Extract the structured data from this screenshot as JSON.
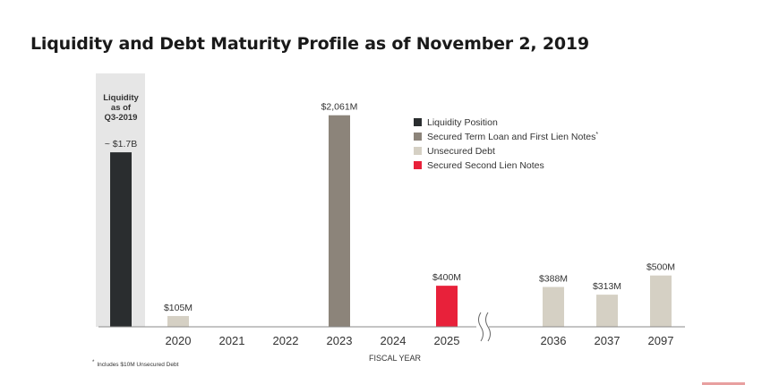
{
  "title": "Liquidity and Debt Maturity Profile as of November 2, 2019",
  "colors": {
    "liquidity": "#2a2d2f",
    "secured_term": "#8c847a",
    "unsecured": "#d5d0c4",
    "second_lien": "#e8213a",
    "panel": "#e6e6e6"
  },
  "chart_data": {
    "type": "bar",
    "title": "Liquidity and Debt Maturity Profile as of November 2, 2019",
    "xlabel": "FISCAL YEAR",
    "ylabel": "",
    "unit": "USD millions",
    "ylim": [
      0,
      2300
    ],
    "grid": false,
    "legend_position": "top-right",
    "liquidity": {
      "header_lines": [
        "Liquidity",
        "as of",
        "Q3-2019"
      ],
      "value": 1700,
      "label": "~ $1.7B",
      "series": "Liquidity Position"
    },
    "categories": [
      "2020",
      "2021",
      "2022",
      "2023",
      "2024",
      "2025",
      "2036",
      "2037",
      "2097"
    ],
    "axis_break_after": "2025",
    "bars": [
      {
        "category": "2020",
        "value": 105,
        "label": "$105M",
        "series": "Unsecured Debt"
      },
      {
        "category": "2023",
        "value": 2061,
        "label": "$2,061M",
        "series": "Secured Term Loan and First Lien Notes"
      },
      {
        "category": "2025",
        "value": 400,
        "label": "$400M",
        "series": "Secured Second Lien Notes"
      },
      {
        "category": "2036",
        "value": 388,
        "label": "$388M",
        "series": "Unsecured Debt"
      },
      {
        "category": "2037",
        "value": 313,
        "label": "$313M",
        "series": "Unsecured Debt"
      },
      {
        "category": "2097",
        "value": 500,
        "label": "$500M",
        "series": "Unsecured Debt"
      }
    ],
    "legend": [
      {
        "name": "Liquidity Position",
        "color": "#2a2d2f",
        "marker": ""
      },
      {
        "name": "Secured Term Loan and First Lien Notes",
        "color": "#8c847a",
        "marker": "*"
      },
      {
        "name": "Unsecured Debt",
        "color": "#d5d0c4",
        "marker": ""
      },
      {
        "name": "Secured Second Lien Notes",
        "color": "#e8213a",
        "marker": ""
      }
    ],
    "footnote_marker": "*",
    "footnote": "Includes $10M Unsecured Debt"
  }
}
